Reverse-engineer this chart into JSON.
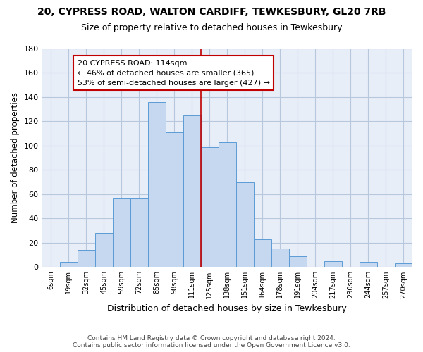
{
  "title": "20, CYPRESS ROAD, WALTON CARDIFF, TEWKESBURY, GL20 7RB",
  "subtitle": "Size of property relative to detached houses in Tewkesbury",
  "xlabel": "Distribution of detached houses by size in Tewkesbury",
  "ylabel": "Number of detached properties",
  "bar_labels": [
    "6sqm",
    "19sqm",
    "32sqm",
    "45sqm",
    "59sqm",
    "72sqm",
    "85sqm",
    "98sqm",
    "111sqm",
    "125sqm",
    "138sqm",
    "151sqm",
    "164sqm",
    "178sqm",
    "191sqm",
    "204sqm",
    "217sqm",
    "230sqm",
    "244sqm",
    "257sqm",
    "270sqm"
  ],
  "bar_values": [
    0,
    4,
    14,
    28,
    57,
    57,
    136,
    111,
    125,
    99,
    103,
    70,
    23,
    15,
    9,
    0,
    5,
    0,
    4,
    0,
    3
  ],
  "bar_color": "#c5d8f0",
  "bar_edge_color": "#5b9bd5",
  "vline_color": "#c00000",
  "annotation_line1": "20 CYPRESS ROAD: 114sqm",
  "annotation_line2": "← 46% of detached houses are smaller (365)",
  "annotation_line3": "53% of semi-detached houses are larger (427) →",
  "annotation_box_color": "#ffffff",
  "annotation_box_edge_color": "#c00000",
  "ylim": [
    0,
    180
  ],
  "yticks": [
    0,
    20,
    40,
    60,
    80,
    100,
    120,
    140,
    160,
    180
  ],
  "footer1": "Contains HM Land Registry data © Crown copyright and database right 2024.",
  "footer2": "Contains public sector information licensed under the Open Government Licence v3.0.",
  "bg_color": "#ffffff",
  "plot_bg_color": "#e8eef8",
  "grid_color": "#b8c8dc"
}
